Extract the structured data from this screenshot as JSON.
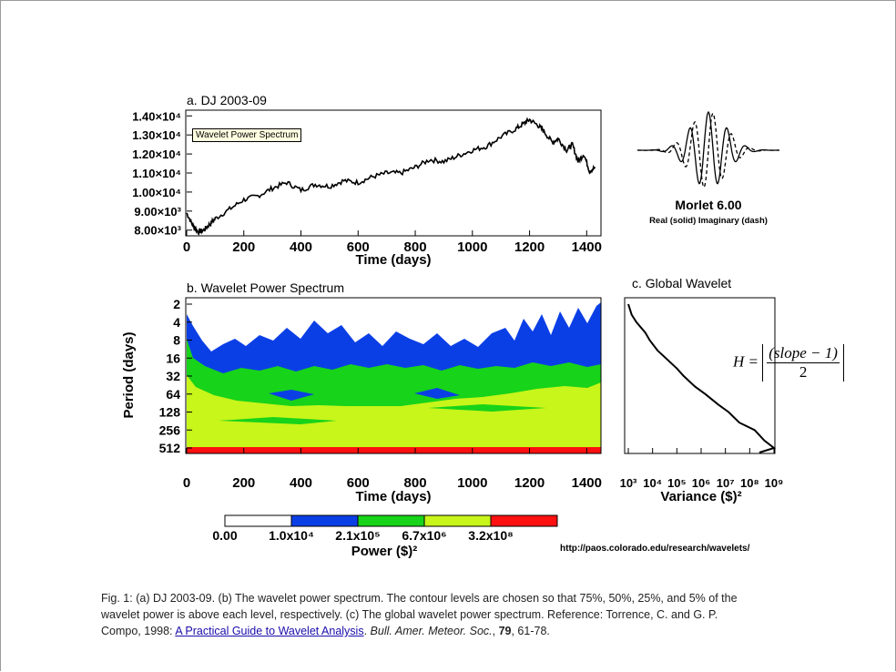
{
  "chart_data": [
    {
      "panel": "a",
      "type": "line",
      "title": "a. DJ 2003-09",
      "xlabel": "Time (days)",
      "xticks": [
        "0",
        "200",
        "400",
        "600",
        "800",
        "1000",
        "1200",
        "1400"
      ],
      "yticks": [
        "1.40×10⁴",
        "1.30×10⁴",
        "1.20×10⁴",
        "1.10×10⁴",
        "1.00×10⁴",
        "9.00×10³",
        "8.00×10³"
      ],
      "xlim": [
        0,
        1450
      ],
      "ylim": [
        7700,
        14300
      ],
      "x": [
        0,
        20,
        40,
        60,
        80,
        100,
        150,
        200,
        250,
        300,
        350,
        400,
        450,
        500,
        550,
        600,
        650,
        700,
        750,
        800,
        850,
        900,
        950,
        1000,
        1050,
        1100,
        1150,
        1180,
        1200,
        1230,
        1250,
        1280,
        1300,
        1330,
        1350,
        1370,
        1390,
        1410,
        1430
      ],
      "y": [
        8900,
        8300,
        7900,
        8000,
        8300,
        8600,
        9100,
        9600,
        9800,
        10200,
        10500,
        10100,
        10400,
        10300,
        10600,
        10500,
        10800,
        11000,
        11000,
        11300,
        11700,
        11600,
        11900,
        12200,
        12400,
        12900,
        13300,
        13600,
        13800,
        13500,
        13200,
        12600,
        12800,
        12200,
        12500,
        11600,
        12000,
        11100,
        11300
      ]
    },
    {
      "panel": "b",
      "type": "heatmap",
      "title": "b. Wavelet Power Spectrum",
      "xlabel": "Time (days)",
      "ylabel": "Period (days)",
      "xticks": [
        "0",
        "200",
        "400",
        "600",
        "800",
        "1000",
        "1200",
        "1400"
      ],
      "yticks": [
        "2",
        "4",
        "8",
        "16",
        "32",
        "64",
        "128",
        "256",
        "512"
      ],
      "levels": [
        "0.00",
        "1.0x10⁴",
        "2.1x10⁵",
        "6.7x10⁶",
        "3.2x10⁸"
      ],
      "level_colors": [
        "#ffffff",
        "#0b3fe6",
        "#17d31a",
        "#c8f51a",
        "#ff1010"
      ],
      "colorbar_label": "Power ($)²"
    },
    {
      "panel": "c",
      "type": "line",
      "title": "c. Global Wavelet",
      "xlabel": "Variance ($)²",
      "xticks": [
        "10³",
        "10⁴",
        "10⁵",
        "10⁶",
        "10⁷",
        "10⁸",
        "10⁹"
      ],
      "x_scale": "log",
      "x": [
        1000,
        1500,
        2500,
        4000,
        8000,
        15000,
        40000,
        80000,
        200000,
        600000,
        1500000,
        4000000,
        12000000,
        40000000,
        150000000,
        400000000,
        1000000000
      ],
      "period": [
        2,
        3,
        4,
        6,
        8,
        12,
        16,
        24,
        32,
        48,
        64,
        96,
        128,
        192,
        256,
        384,
        512
      ]
    }
  ],
  "tooltip": "Wavelet Power Spectrum",
  "morlet": {
    "title": "Morlet 6.00",
    "subtitle": "Real (solid)  Imaginary (dash)"
  },
  "formula": {
    "lhs": "H =",
    "num": "(slope − 1)",
    "den": "2"
  },
  "url": "http://paos.colorado.edu/research/wavelets/",
  "caption": {
    "text1": "Fig. 1: (a) DJ 2003-09. (b) The wavelet power spectrum. The contour levels are chosen so that 75%, 50%, 25%, and 5% of the wavelet power is above each level, respectively. (c) The global wavelet power spectrum.  Reference: Torrence, C. and G. P. Compo, 1998: ",
    "link": "A Practical Guide to Wavelet Analysis",
    "text2": ". ",
    "journal": "Bull. Amer. Meteor. Soc.",
    "vol_sep": ", ",
    "volume": "79",
    "pages": ", 61-78."
  }
}
